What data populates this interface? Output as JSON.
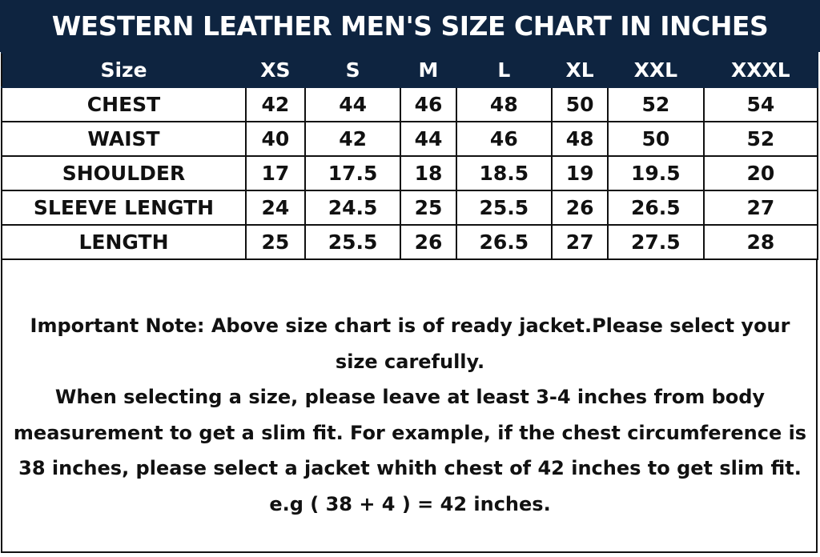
{
  "title": "WESTERN LEATHER MEN'S SIZE CHART IN INCHES",
  "table": {
    "header": [
      "Size",
      "XS",
      "S",
      "M",
      "L",
      "XL",
      "XXL",
      "XXXL"
    ],
    "rows": [
      [
        "CHEST",
        "42",
        "44",
        "46",
        "48",
        "50",
        "52",
        "54"
      ],
      [
        "WAIST",
        "40",
        "42",
        "44",
        "46",
        "48",
        "50",
        "52"
      ],
      [
        "SHOULDER",
        "17",
        "17.5",
        "18",
        "18.5",
        "19",
        "19.5",
        "20"
      ],
      [
        "SLEEVE LENGTH",
        "24",
        "24.5",
        "25",
        "25.5",
        "26",
        "26.5",
        "27"
      ],
      [
        "LENGTH",
        "25",
        "25.5",
        "26",
        "26.5",
        "27",
        "27.5",
        "28"
      ]
    ]
  },
  "note": {
    "line1": "Important Note: Above size chart is of ready jacket.Please select your size carefully.",
    "line2": "When selecting a size, please leave at least 3-4 inches from body measurement to get a slim fit. For example, if the chest circumference is 38 inches, please select a jacket whith chest of 42 inches to get slim fit.",
    "line3": "e.g ( 38 + 4 ) = 42 inches."
  },
  "colors": {
    "header_bg": "#0e2440",
    "header_text": "#ffffff",
    "text": "#111111"
  }
}
